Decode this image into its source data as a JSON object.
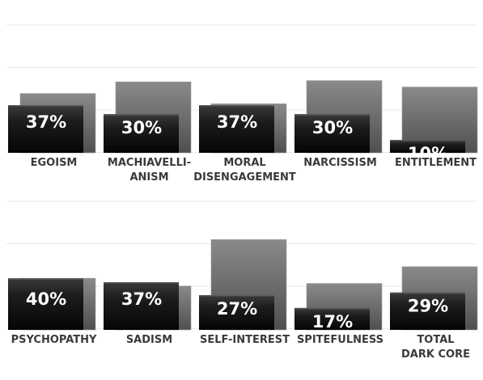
{
  "chart_data": {
    "type": "bar",
    "grid": true,
    "colors": {
      "front": "#1a1a1a",
      "back": "#6e6e6e",
      "grid": "#e9e9e9",
      "label": "#3a3a3a",
      "value": "#ffffff"
    },
    "series": [
      {
        "values": [
          37,
          30,
          37,
          30,
          10,
          40,
          37,
          27,
          17,
          29
        ]
      },
      {
        "values": [
          46,
          55,
          38,
          56,
          51,
          40,
          34,
          70,
          36,
          49
        ]
      }
    ],
    "panels": [
      {
        "categories": [
          {
            "label": [
              "EGOISM"
            ],
            "value_text": "37%"
          },
          {
            "label": [
              "MACHIAVELLI-",
              "ANISM"
            ],
            "value_text": "30%"
          },
          {
            "label": [
              "MORAL",
              "DISENGAGEMENT"
            ],
            "value_text": "37%"
          },
          {
            "label": [
              "NARCISSISM"
            ],
            "value_text": "30%"
          },
          {
            "label": [
              "ENTITLEMENT"
            ],
            "value_text": "10%"
          }
        ]
      },
      {
        "categories": [
          {
            "label": [
              "PSYCHOPATHY"
            ],
            "value_text": "40%"
          },
          {
            "label": [
              "SADISM"
            ],
            "value_text": "37%"
          },
          {
            "label": [
              "SELF-INTEREST"
            ],
            "value_text": "27%"
          },
          {
            "label": [
              "SPITEFULNESS"
            ],
            "value_text": "17%"
          },
          {
            "label": [
              "TOTAL",
              "DARK CORE"
            ],
            "value_text": "29%"
          }
        ]
      }
    ]
  }
}
